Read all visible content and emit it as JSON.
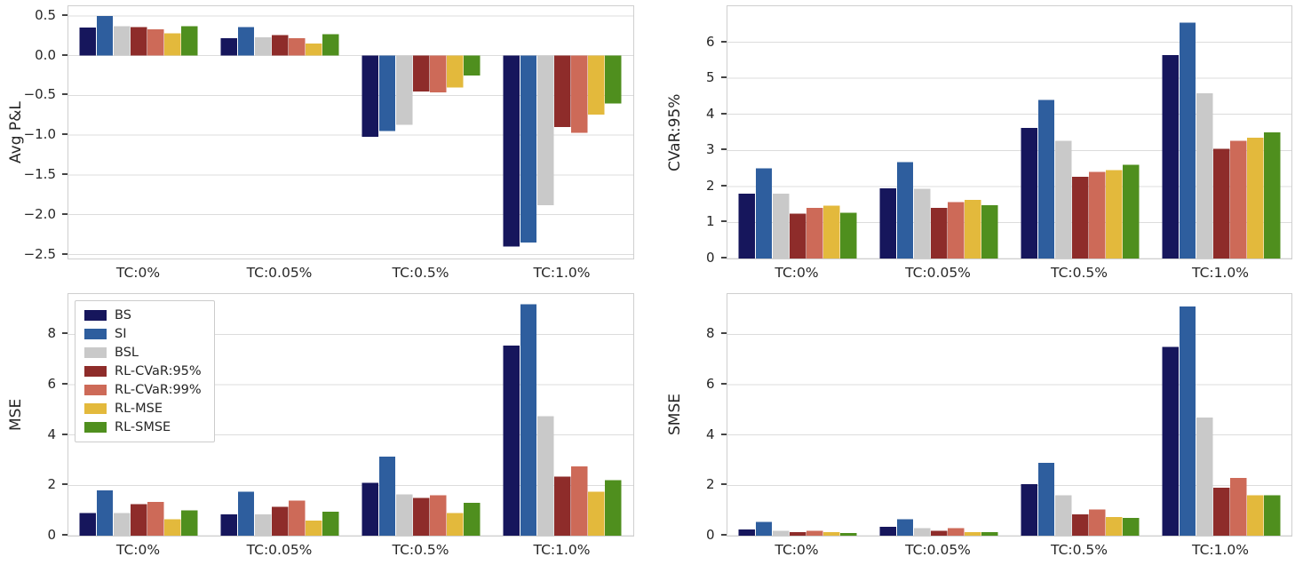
{
  "series_names": [
    "BS",
    "SI",
    "BSL",
    "RL-CVaR:95%",
    "RL-CVaR:99%",
    "RL-MSE",
    "RL-SMSE"
  ],
  "series_colors": [
    "#16165c",
    "#2e5e9e",
    "#c9c9c9",
    "#8e2c2a",
    "#cd6a58",
    "#e3b93c",
    "#4f8f1e"
  ],
  "categories": [
    "TC:0%",
    "TC:0.05%",
    "TC:0.5%",
    "TC:1.0%"
  ],
  "grid_color": "#dcdcdc",
  "chart_data": [
    {
      "type": "bar",
      "ylabel": "Avg P&L",
      "ylim": [
        -2.55,
        0.62
      ],
      "yticks": [
        0.5,
        0.0,
        -0.5,
        -1.0,
        -1.5,
        -2.0,
        -2.5
      ],
      "ytick_labels": [
        "0.5",
        "0.0",
        "−0.5",
        "−1.0",
        "−1.5",
        "−2.0",
        "−2.5"
      ],
      "legend": false,
      "categories": [
        "TC:0%",
        "TC:0.05%",
        "TC:0.5%",
        "TC:1.0%"
      ],
      "series": [
        {
          "name": "BS",
          "values": [
            0.35,
            0.22,
            -1.02,
            -2.4
          ]
        },
        {
          "name": "SI",
          "values": [
            0.5,
            0.36,
            -0.95,
            -2.35
          ]
        },
        {
          "name": "BSL",
          "values": [
            0.37,
            0.23,
            -0.87,
            -1.88
          ]
        },
        {
          "name": "RL-CVaR:95%",
          "values": [
            0.36,
            0.26,
            -0.45,
            -0.9
          ]
        },
        {
          "name": "RL-CVaR:99%",
          "values": [
            0.33,
            0.22,
            -0.46,
            -0.97
          ]
        },
        {
          "name": "RL-MSE",
          "values": [
            0.28,
            0.15,
            -0.4,
            -0.74
          ]
        },
        {
          "name": "RL-SMSE",
          "values": [
            0.37,
            0.27,
            -0.25,
            -0.6
          ]
        }
      ]
    },
    {
      "type": "bar",
      "ylabel": "CVaR:95%",
      "ylim": [
        0,
        7.0
      ],
      "yticks": [
        0,
        1,
        2,
        3,
        4,
        5,
        6
      ],
      "ytick_labels": [
        "0",
        "1",
        "2",
        "3",
        "4",
        "5",
        "6"
      ],
      "legend": false,
      "categories": [
        "TC:0%",
        "TC:0.05%",
        "TC:0.5%",
        "TC:1.0%"
      ],
      "series": [
        {
          "name": "BS",
          "values": [
            1.8,
            1.95,
            3.62,
            5.65
          ]
        },
        {
          "name": "SI",
          "values": [
            2.5,
            2.67,
            4.4,
            6.55
          ]
        },
        {
          "name": "BSL",
          "values": [
            1.8,
            1.93,
            3.27,
            4.58
          ]
        },
        {
          "name": "RL-CVaR:95%",
          "values": [
            1.25,
            1.4,
            2.27,
            3.05
          ]
        },
        {
          "name": "RL-CVaR:99%",
          "values": [
            1.4,
            1.57,
            2.4,
            3.27
          ]
        },
        {
          "name": "RL-MSE",
          "values": [
            1.47,
            1.63,
            2.45,
            3.35
          ]
        },
        {
          "name": "RL-SMSE",
          "values": [
            1.27,
            1.48,
            2.6,
            3.5
          ]
        }
      ]
    },
    {
      "type": "bar",
      "ylabel": "MSE",
      "ylim": [
        0,
        9.6
      ],
      "yticks": [
        0,
        2,
        4,
        6,
        8
      ],
      "ytick_labels": [
        "0",
        "2",
        "4",
        "6",
        "8"
      ],
      "legend": true,
      "categories": [
        "TC:0%",
        "TC:0.05%",
        "TC:0.5%",
        "TC:1.0%"
      ],
      "series": [
        {
          "name": "BS",
          "values": [
            0.9,
            0.85,
            2.1,
            7.55
          ]
        },
        {
          "name": "SI",
          "values": [
            1.8,
            1.75,
            3.15,
            9.2
          ]
        },
        {
          "name": "BSL",
          "values": [
            0.9,
            0.85,
            1.65,
            4.75
          ]
        },
        {
          "name": "RL-CVaR:95%",
          "values": [
            1.25,
            1.15,
            1.5,
            2.35
          ]
        },
        {
          "name": "RL-CVaR:99%",
          "values": [
            1.35,
            1.4,
            1.6,
            2.75
          ]
        },
        {
          "name": "RL-MSE",
          "values": [
            0.65,
            0.6,
            0.9,
            1.75
          ]
        },
        {
          "name": "RL-SMSE",
          "values": [
            1.0,
            0.95,
            1.3,
            2.2
          ]
        }
      ]
    },
    {
      "type": "bar",
      "ylabel": "SMSE",
      "ylim": [
        0,
        9.6
      ],
      "yticks": [
        0,
        2,
        4,
        6,
        8
      ],
      "ytick_labels": [
        "0",
        "2",
        "4",
        "6",
        "8"
      ],
      "legend": false,
      "categories": [
        "TC:0%",
        "TC:0.05%",
        "TC:0.5%",
        "TC:1.0%"
      ],
      "series": [
        {
          "name": "BS",
          "values": [
            0.25,
            0.35,
            2.05,
            7.5
          ]
        },
        {
          "name": "SI",
          "values": [
            0.55,
            0.65,
            2.9,
            9.1
          ]
        },
        {
          "name": "BSL",
          "values": [
            0.2,
            0.3,
            1.6,
            4.7
          ]
        },
        {
          "name": "RL-CVaR:95%",
          "values": [
            0.15,
            0.2,
            0.85,
            1.9
          ]
        },
        {
          "name": "RL-CVaR:99%",
          "values": [
            0.2,
            0.3,
            1.05,
            2.3
          ]
        },
        {
          "name": "RL-MSE",
          "values": [
            0.15,
            0.15,
            0.75,
            1.6
          ]
        },
        {
          "name": "RL-SMSE",
          "values": [
            0.1,
            0.15,
            0.7,
            1.6
          ]
        }
      ]
    }
  ]
}
